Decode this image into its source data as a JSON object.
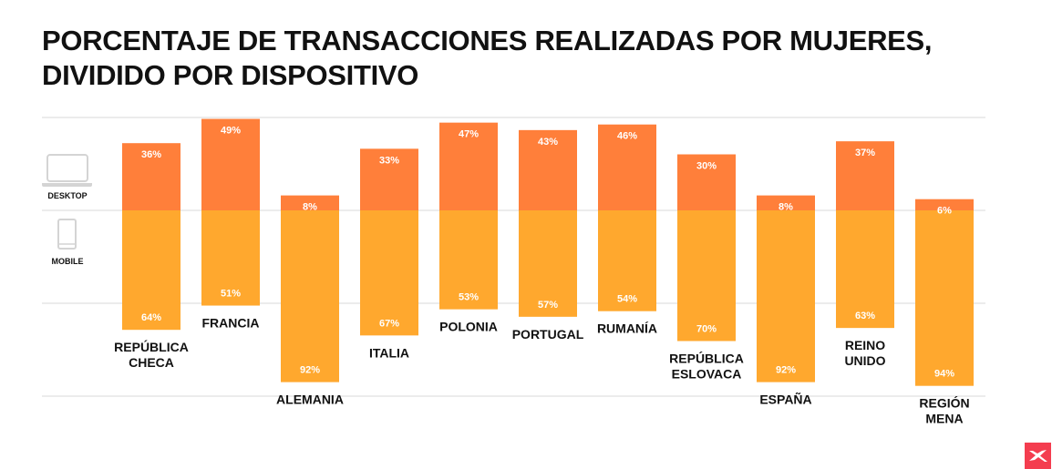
{
  "title": [
    "PORCENTAJE DE TRANSACCIONES REALIZADAS POR MUJERES,",
    "DIVIDIDO POR DISPOSITIVO"
  ],
  "chart_data": {
    "type": "bar",
    "stacked": "diverging",
    "title": "PORCENTAJE DE TRANSACCIONES REALIZADAS POR MUJERES, DIVIDIDO POR DISPOSITIVO",
    "categories": [
      [
        "REPÚBLICA",
        "CHECA"
      ],
      [
        "FRANCIA"
      ],
      [
        "ALEMANIA"
      ],
      [
        "ITALIA"
      ],
      [
        "POLONIA"
      ],
      [
        "PORTUGAL"
      ],
      [
        "RUMANÍA"
      ],
      [
        "REPÚBLICA",
        "ESLOVACA"
      ],
      [
        "ESPAÑA"
      ],
      [
        "REINO",
        "UNIDO"
      ],
      [
        "REGIÓN",
        "MENA"
      ]
    ],
    "series": [
      {
        "name": "DESKTOP",
        "icon": "laptop-icon",
        "color": "#ff7f3a",
        "values": [
          36,
          49,
          8,
          33,
          47,
          43,
          46,
          30,
          8,
          37,
          6
        ]
      },
      {
        "name": "MOBILE",
        "icon": "smartphone-icon",
        "color": "#ffa82e",
        "values": [
          64,
          51,
          92,
          67,
          53,
          57,
          54,
          70,
          92,
          63,
          94
        ]
      }
    ],
    "value_suffix": "%",
    "grid": true
  },
  "logo": {
    "name": "brand-logo",
    "color": "#f43d4f"
  }
}
